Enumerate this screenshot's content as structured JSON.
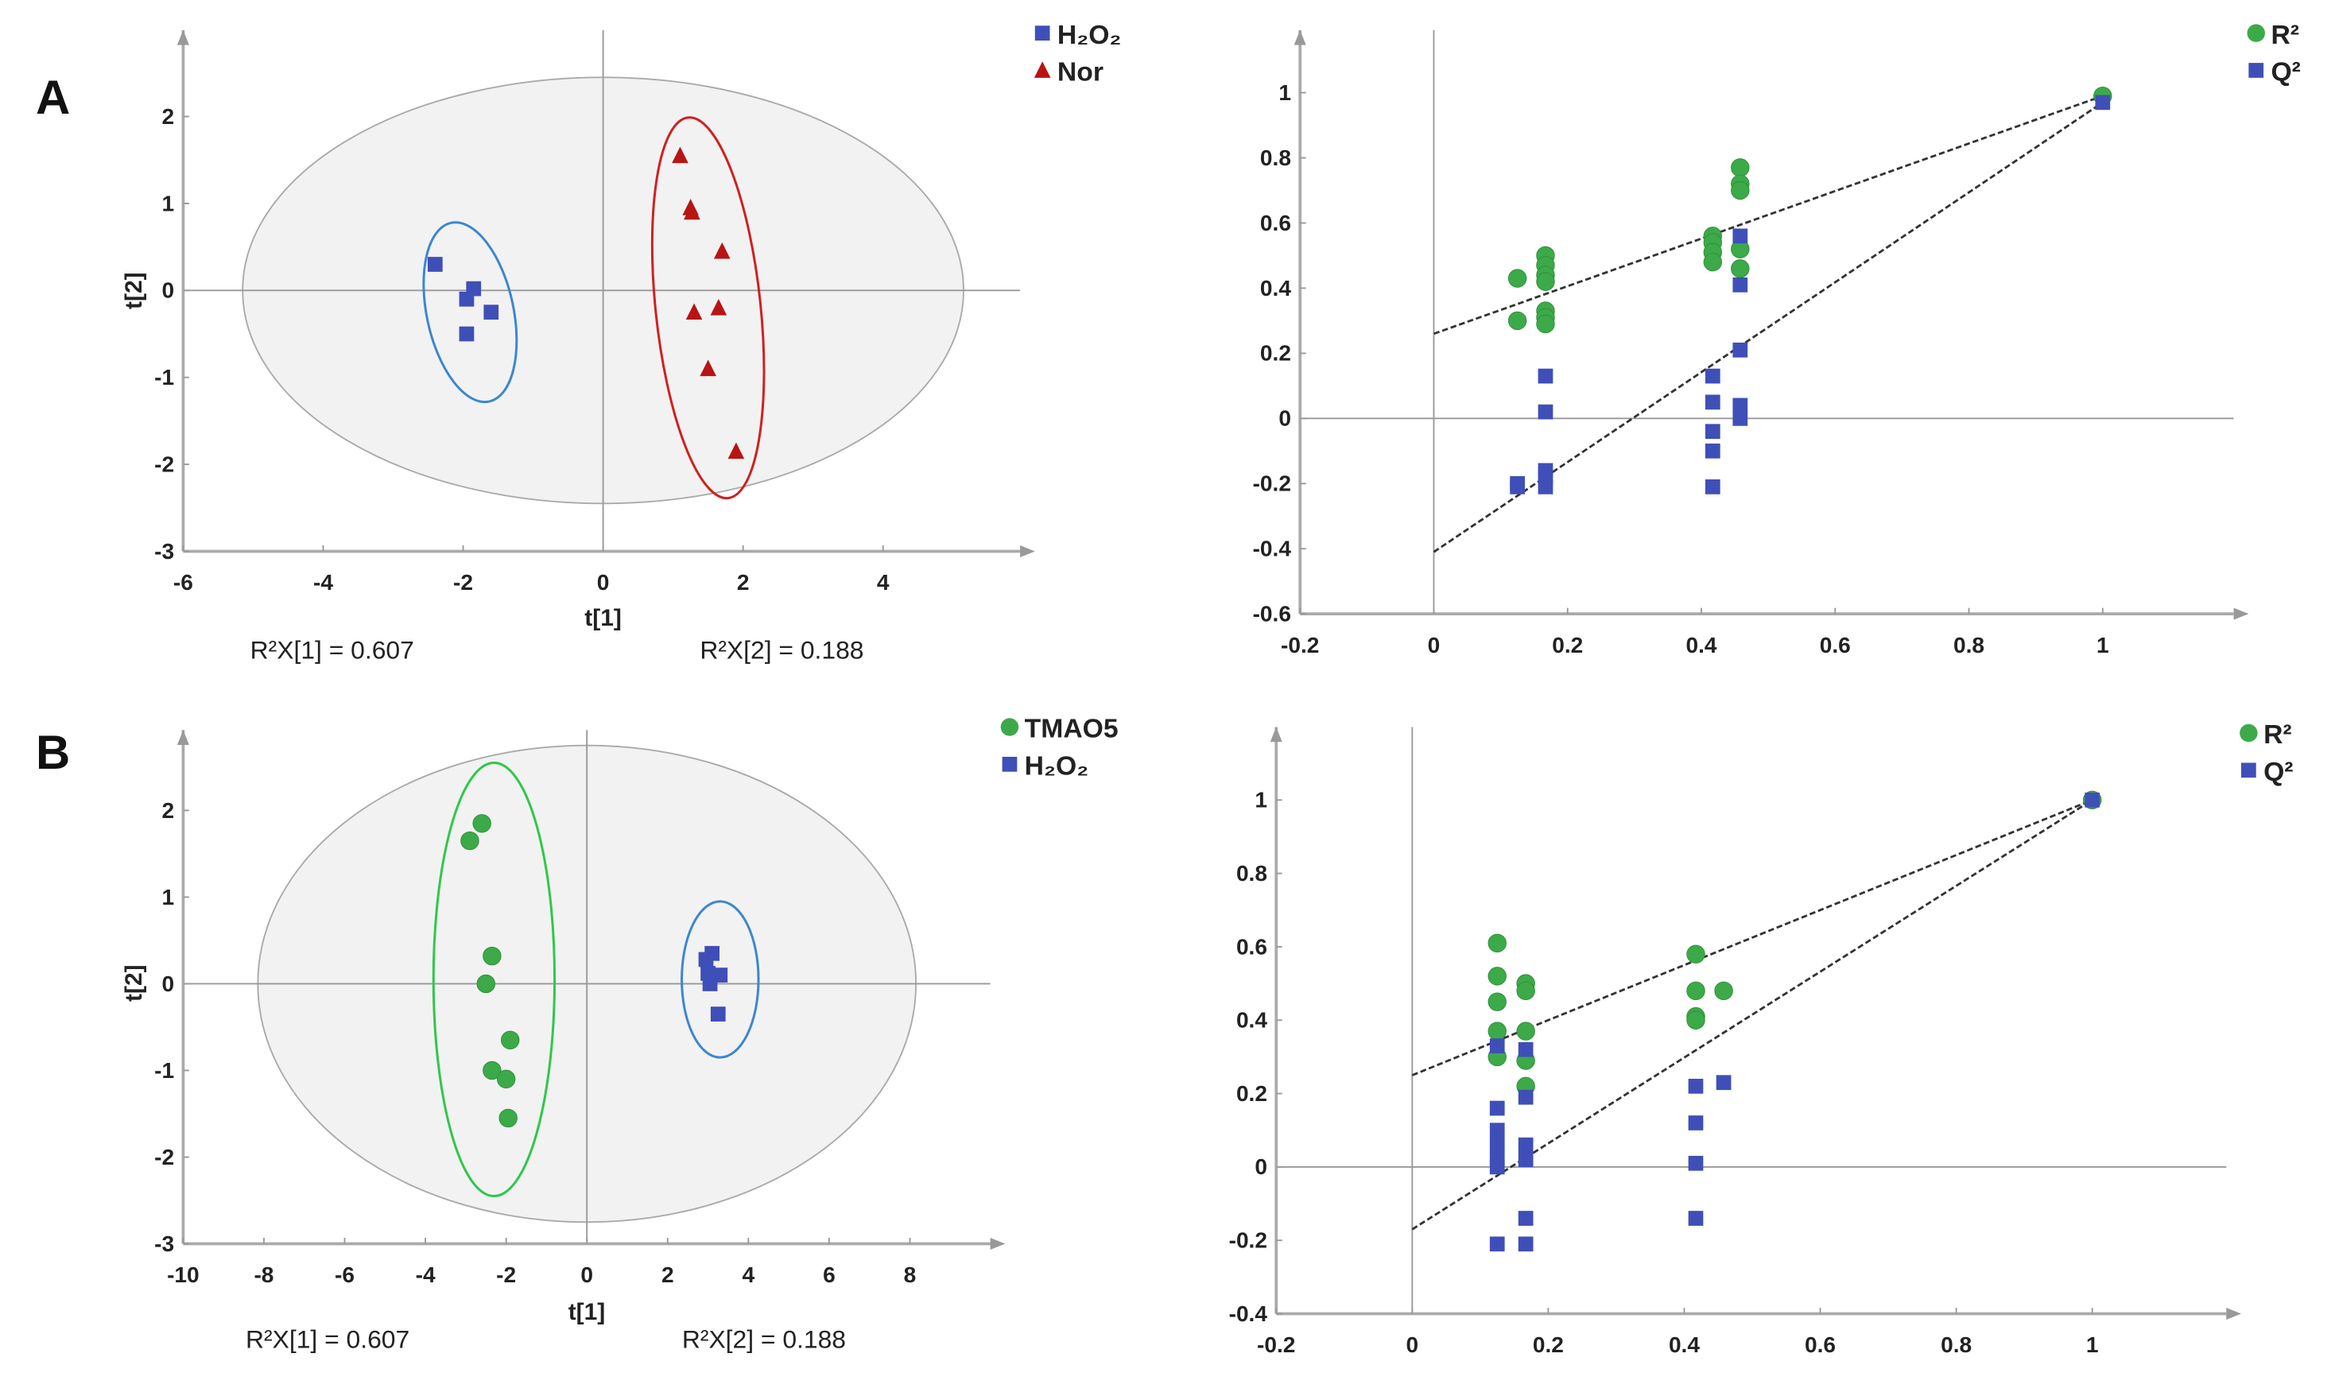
{
  "colors": {
    "blue": "#3f4fb8",
    "red": "#b81414",
    "green": "#3caa48",
    "ellipse_fill": "#f2f2f2",
    "ellipse_stroke": "#aaaaaa",
    "blue_ellipse": "#3b87d0",
    "red_ellipse": "#d02020",
    "green_ellipse": "#2ec84a"
  },
  "panels": [
    "A",
    "B"
  ],
  "chart_data": [
    {
      "type": "scatter",
      "panel": "A",
      "xlabel": "t[1]",
      "ylabel": "t[2]",
      "xlim": [
        -6,
        5.8
      ],
      "ylim": [
        -3,
        2.9
      ],
      "xticks": [
        "-6",
        "-4",
        "-2",
        "0",
        "2",
        "4"
      ],
      "yticks": [
        "-3",
        "-2",
        "-1",
        "0",
        "1",
        "2"
      ],
      "annotations": [
        "R²X[1] = 0.607",
        "R²X[2] = 0.188"
      ],
      "hotelling_ellipse": {
        "cx": 0,
        "cy": 0,
        "rx": 5.15,
        "ry": 2.45
      },
      "series": [
        {
          "name": "H₂O₂",
          "marker": "square",
          "color": "blue",
          "points": [
            [
              -2.4,
              0.3
            ],
            [
              -1.85,
              0.02
            ],
            [
              -1.95,
              -0.1
            ],
            [
              -1.6,
              -0.25
            ],
            [
              -1.95,
              -0.5
            ]
          ],
          "group_ellipse": {
            "cx": -1.9,
            "cy": -0.25,
            "rx": 0.62,
            "ry": 1.05,
            "angle": -12
          }
        },
        {
          "name": "Nor",
          "marker": "triangle",
          "color": "red",
          "points": [
            [
              1.1,
              1.55
            ],
            [
              1.25,
              0.95
            ],
            [
              1.27,
              0.9
            ],
            [
              1.7,
              0.45
            ],
            [
              1.3,
              -0.25
            ],
            [
              1.65,
              -0.2
            ],
            [
              1.5,
              -0.9
            ],
            [
              1.9,
              -1.85
            ]
          ],
          "group_ellipse": {
            "cx": 1.5,
            "cy": -0.2,
            "rx": 0.75,
            "ry": 2.2,
            "angle": -6
          }
        }
      ]
    },
    {
      "type": "scatter",
      "panel": "A",
      "xlabel": "",
      "ylabel": "",
      "xlim": [
        -0.2,
        1.2
      ],
      "ylim": [
        -0.6,
        1.2
      ],
      "xticks": [
        "-0.2",
        "0",
        "0.2",
        "0.4",
        "0.6",
        "0.8",
        "1"
      ],
      "yticks": [
        "-0.6",
        "-0.4",
        "-0.2",
        "0",
        "0.2",
        "0.4",
        "0.6",
        "0.8",
        "1"
      ],
      "series": [
        {
          "name": "R²",
          "marker": "circle",
          "color": "green",
          "points": [
            [
              0.125,
              0.43
            ],
            [
              0.125,
              0.3
            ],
            [
              0.167,
              0.5
            ],
            [
              0.167,
              0.47
            ],
            [
              0.167,
              0.44
            ],
            [
              0.167,
              0.42
            ],
            [
              0.167,
              0.33
            ],
            [
              0.167,
              0.31
            ],
            [
              0.167,
              0.29
            ],
            [
              0.417,
              0.56
            ],
            [
              0.417,
              0.54
            ],
            [
              0.417,
              0.51
            ],
            [
              0.417,
              0.48
            ],
            [
              0.458,
              0.77
            ],
            [
              0.458,
              0.72
            ],
            [
              0.458,
              0.7
            ],
            [
              0.458,
              0.52
            ],
            [
              0.458,
              0.46
            ],
            [
              1,
              0.99
            ]
          ],
          "regression": [
            [
              0,
              0.26
            ],
            [
              1,
              0.99
            ]
          ]
        },
        {
          "name": "Q²",
          "marker": "square",
          "color": "blue",
          "points": [
            [
              0.125,
              -0.2
            ],
            [
              0.125,
              -0.21
            ],
            [
              0.167,
              0.13
            ],
            [
              0.167,
              0.02
            ],
            [
              0.167,
              -0.16
            ],
            [
              0.167,
              -0.18
            ],
            [
              0.167,
              -0.21
            ],
            [
              0.417,
              0.13
            ],
            [
              0.417,
              0.05
            ],
            [
              0.417,
              -0.04
            ],
            [
              0.417,
              -0.1
            ],
            [
              0.417,
              -0.21
            ],
            [
              0.458,
              0.56
            ],
            [
              0.458,
              0.41
            ],
            [
              0.458,
              0.21
            ],
            [
              0.458,
              0.04
            ],
            [
              0.458,
              0.0
            ],
            [
              1,
              0.97
            ]
          ],
          "regression": [
            [
              0,
              -0.41
            ],
            [
              1,
              0.97
            ]
          ]
        }
      ]
    },
    {
      "type": "scatter",
      "panel": "B",
      "xlabel": "t[1]",
      "ylabel": "t[2]",
      "xlim": [
        -10,
        10
      ],
      "ylim": [
        -3,
        2.9
      ],
      "xticks": [
        "-10",
        "-8",
        "-6",
        "-4",
        "-2",
        "0",
        "2",
        "4",
        "6",
        "8"
      ],
      "yticks": [
        "-3",
        "-2",
        "-1",
        "0",
        "1",
        "2"
      ],
      "annotations": [
        "R²X[1] = 0.607",
        "R²X[2] = 0.188"
      ],
      "hotelling_ellipse": {
        "cx": 0,
        "cy": 0,
        "rx": 8.15,
        "ry": 2.75
      },
      "series": [
        {
          "name": "TMAO5",
          "marker": "circle",
          "color": "green",
          "points": [
            [
              -2.6,
              1.85
            ],
            [
              -2.9,
              1.65
            ],
            [
              -2.35,
              0.32
            ],
            [
              -2.5,
              0
            ],
            [
              -1.9,
              -0.65
            ],
            [
              -2.35,
              -1.0
            ],
            [
              -2.0,
              -1.1
            ],
            [
              -1.95,
              -1.55
            ]
          ],
          "group_ellipse": {
            "cx": -2.3,
            "cy": 0.05,
            "rx": 1.5,
            "ry": 2.5,
            "angle": 0
          }
        },
        {
          "name": "H₂O₂",
          "marker": "square",
          "color": "blue",
          "points": [
            [
              3.1,
              0.35
            ],
            [
              2.95,
              0.28
            ],
            [
              3.3,
              0.1
            ],
            [
              3.0,
              0.12
            ],
            [
              3.05,
              0.0
            ],
            [
              3.25,
              -0.35
            ]
          ],
          "group_ellipse": {
            "cx": 3.3,
            "cy": 0.05,
            "rx": 0.95,
            "ry": 0.9,
            "angle": 0
          }
        }
      ]
    },
    {
      "type": "scatter",
      "panel": "B",
      "xlabel": "",
      "ylabel": "",
      "xlim": [
        -0.2,
        1.2
      ],
      "ylim": [
        -0.4,
        1.2
      ],
      "xticks": [
        "-0.2",
        "0",
        "0.2",
        "0.4",
        "0.6",
        "0.8",
        "1"
      ],
      "yticks": [
        "-0.4",
        "-0.2",
        "0",
        "0.2",
        "0.4",
        "0.6",
        "0.8",
        "1"
      ],
      "series": [
        {
          "name": "R²",
          "marker": "circle",
          "color": "green",
          "points": [
            [
              0.125,
              0.61
            ],
            [
              0.125,
              0.52
            ],
            [
              0.125,
              0.45
            ],
            [
              0.125,
              0.37
            ],
            [
              0.125,
              0.3
            ],
            [
              0.167,
              0.5
            ],
            [
              0.167,
              0.48
            ],
            [
              0.167,
              0.37
            ],
            [
              0.167,
              0.29
            ],
            [
              0.167,
              0.22
            ],
            [
              0.417,
              0.58
            ],
            [
              0.417,
              0.48
            ],
            [
              0.417,
              0.41
            ],
            [
              0.417,
              0.4
            ],
            [
              0.458,
              0.48
            ],
            [
              1,
              1.0
            ]
          ],
          "regression": [
            [
              0,
              0.25
            ],
            [
              1,
              1.0
            ]
          ]
        },
        {
          "name": "Q²",
          "marker": "square",
          "color": "blue",
          "points": [
            [
              0.125,
              0.33
            ],
            [
              0.125,
              0.16
            ],
            [
              0.125,
              0.1
            ],
            [
              0.125,
              0.06
            ],
            [
              0.125,
              0.02
            ],
            [
              0.125,
              0.0
            ],
            [
              0.125,
              -0.21
            ],
            [
              0.167,
              0.32
            ],
            [
              0.167,
              0.19
            ],
            [
              0.167,
              0.06
            ],
            [
              0.167,
              0.02
            ],
            [
              0.167,
              -0.14
            ],
            [
              0.167,
              -0.21
            ],
            [
              0.417,
              0.22
            ],
            [
              0.417,
              0.12
            ],
            [
              0.417,
              0.01
            ],
            [
              0.417,
              -0.14
            ],
            [
              0.458,
              0.23
            ],
            [
              1,
              1.0
            ]
          ],
          "regression": [
            [
              0,
              -0.17
            ],
            [
              1,
              1.0
            ]
          ]
        }
      ]
    }
  ]
}
